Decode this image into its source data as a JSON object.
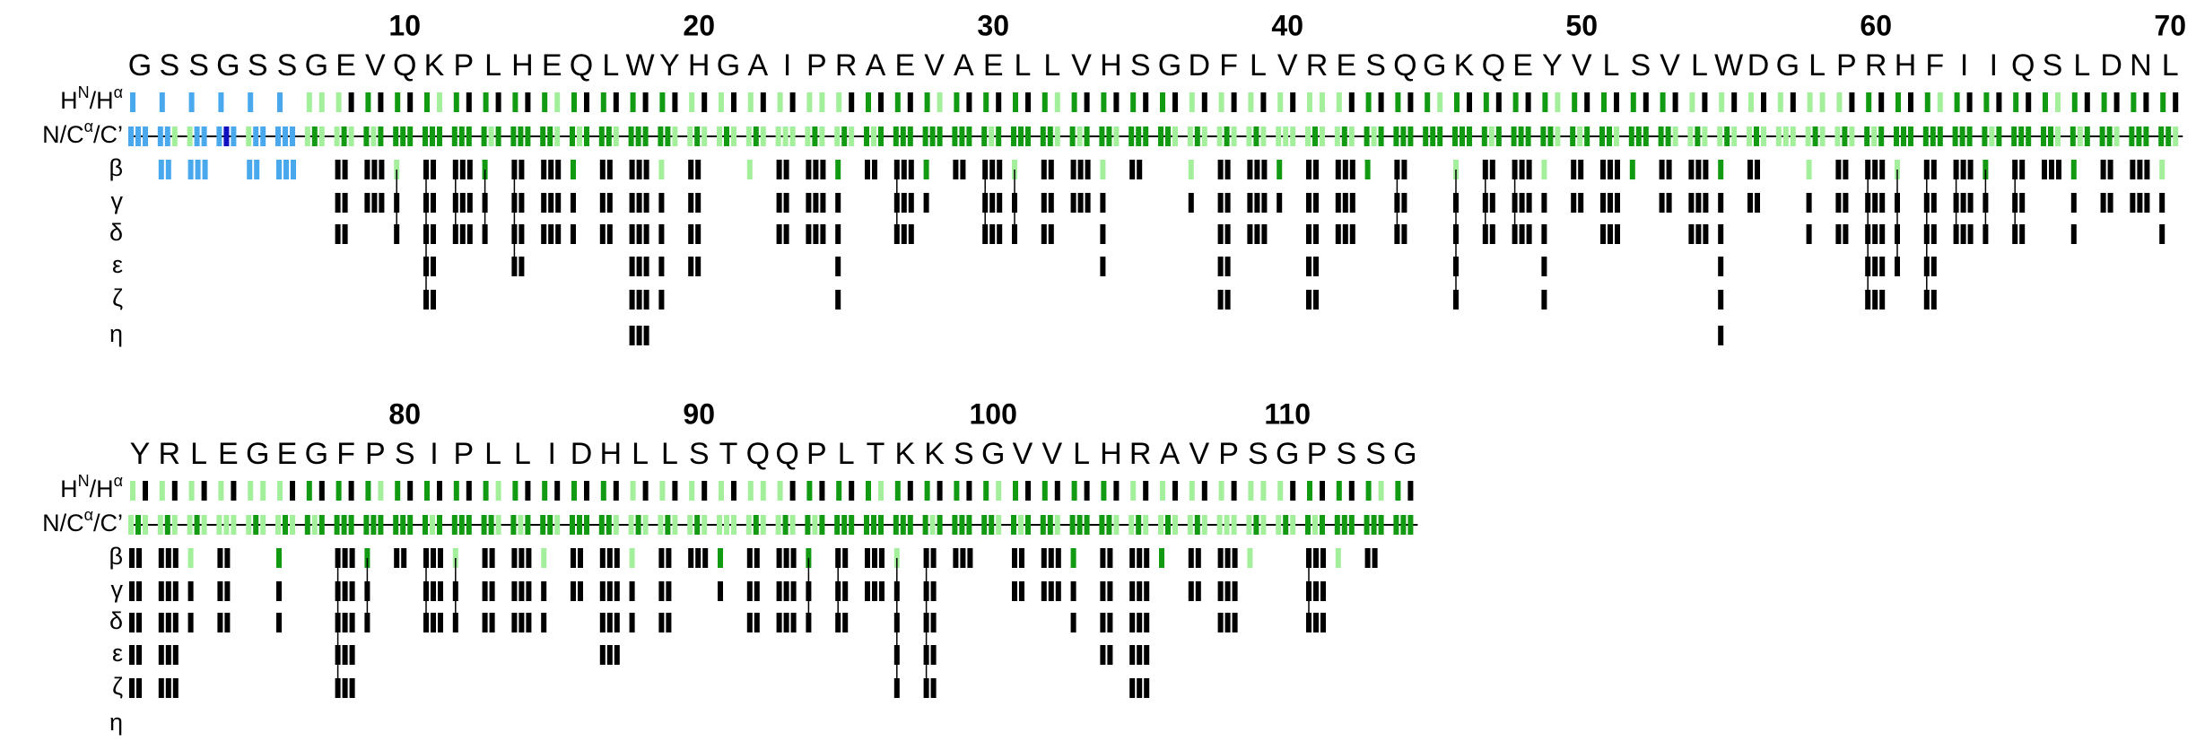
{
  "row_labels": [
    {
      "parts": [
        "H",
        "N",
        "/H",
        "α"
      ]
    },
    {
      "parts": [
        "N/C",
        "α",
        "/C’"
      ]
    },
    {
      "parts": [
        "β"
      ]
    },
    {
      "parts": [
        "γ"
      ]
    },
    {
      "parts": [
        "δ"
      ]
    },
    {
      "parts": [
        "ε"
      ]
    },
    {
      "parts": [
        "ζ"
      ]
    },
    {
      "parts": [
        "η"
      ]
    }
  ],
  "blocks": [
    {
      "numbers": [
        10,
        20,
        30,
        40,
        50,
        60,
        70
      ],
      "residues": [
        "G",
        "S",
        "S",
        "G",
        "S",
        "S",
        "G",
        "E",
        "V",
        "Q",
        "K",
        "P",
        "L",
        "H",
        "E",
        "Q",
        "L",
        "W",
        "Y",
        "H",
        "G",
        "A",
        "I",
        "P",
        "R",
        "A",
        "E",
        "V",
        "A",
        "E",
        "L",
        "L",
        "V",
        "H",
        "S",
        "G",
        "D",
        "F",
        "L",
        "V",
        "R",
        "E",
        "S",
        "Q",
        "G",
        "K",
        "Q",
        "E",
        "Y",
        "V",
        "L",
        "S",
        "V",
        "L",
        "W",
        "D",
        "G",
        "L",
        "P",
        "R",
        "H",
        "F",
        "I",
        "I",
        "Q",
        "S",
        "L",
        "D",
        "N",
        "L"
      ]
    },
    {
      "numbers": [
        80,
        90,
        100,
        110
      ],
      "residues": [
        "Y",
        "R",
        "L",
        "E",
        "G",
        "E",
        "G",
        "F",
        "P",
        "S",
        "I",
        "P",
        "L",
        "L",
        "I",
        "D",
        "H",
        "L",
        "L",
        "S",
        "T",
        "Q",
        "Q",
        "P",
        "L",
        "T",
        "K",
        "K",
        "S",
        "G",
        "V",
        "V",
        "L",
        "H",
        "R",
        "A",
        "V",
        "P",
        "S",
        "G",
        "P",
        "S",
        "S",
        "G"
      ]
    }
  ]
}
